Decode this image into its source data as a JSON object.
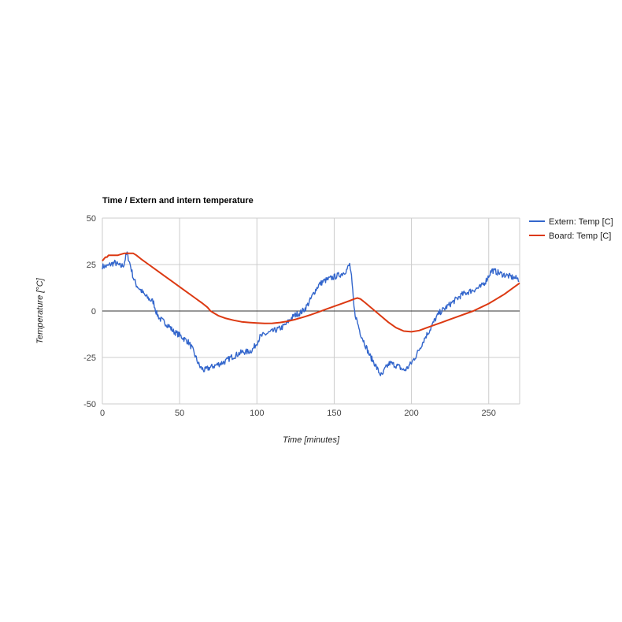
{
  "chart_data": {
    "type": "line",
    "title": "Time / Extern and intern temperature",
    "xlabel": "Time [minutes]",
    "ylabel": "Temperature [°C]",
    "xlim": [
      0,
      270
    ],
    "ylim": [
      -50,
      50
    ],
    "xticks": [
      0,
      50,
      100,
      150,
      200,
      250
    ],
    "yticks": [
      -50,
      -25,
      0,
      25,
      50
    ],
    "grid": true,
    "legend_position": "right",
    "series": [
      {
        "name": "Extern: Temp [C]",
        "color": "#3366cc",
        "noisy": true,
        "x": [
          0,
          3,
          5,
          8,
          10,
          12,
          14,
          15,
          16,
          17,
          18,
          20,
          22,
          25,
          28,
          31,
          33,
          35,
          37,
          40,
          43,
          46,
          50,
          53,
          56,
          58,
          60,
          63,
          66,
          68,
          71,
          74,
          77,
          80,
          83,
          86,
          88,
          91,
          94,
          97,
          100,
          102,
          104,
          107,
          110,
          113,
          116,
          119,
          122,
          125,
          128,
          131,
          134,
          137,
          140,
          143,
          146,
          149,
          152,
          155,
          158,
          160,
          161,
          162,
          163,
          165,
          167,
          170,
          173,
          176,
          179,
          181,
          183,
          186,
          189,
          192,
          195,
          197,
          200,
          203,
          206,
          209,
          212,
          215,
          218,
          221,
          224,
          227,
          230,
          233,
          236,
          239,
          242,
          245,
          248,
          250,
          252,
          255,
          258,
          262,
          266,
          270
        ],
        "values": [
          24,
          24,
          25,
          26,
          25,
          24,
          25,
          29,
          31,
          28,
          25,
          18,
          14,
          11,
          8,
          6,
          5,
          -1,
          -4,
          -6,
          -8,
          -11,
          -13,
          -15,
          -17,
          -20,
          -24,
          -30,
          -32,
          -31,
          -30,
          -29,
          -28,
          -27,
          -25,
          -24,
          -23,
          -22,
          -22,
          -21,
          -17,
          -14,
          -13,
          -12,
          -11,
          -10,
          -9,
          -7,
          -4,
          -2,
          -1,
          1,
          5,
          10,
          14,
          16,
          17,
          18,
          19,
          20,
          22,
          25,
          20,
          10,
          0,
          -6,
          -12,
          -18,
          -24,
          -28,
          -33,
          -35,
          -31,
          -28,
          -29,
          -30,
          -32,
          -31,
          -28,
          -24,
          -19,
          -14,
          -10,
          -5,
          -1,
          1,
          3,
          5,
          7,
          9,
          10,
          11,
          12,
          13,
          16,
          19,
          22,
          21,
          20,
          19,
          18,
          17
        ]
      },
      {
        "name": "Board: Temp [C]",
        "color": "#dc3912",
        "noisy": false,
        "x": [
          0,
          1,
          2,
          3,
          4,
          6,
          8,
          10,
          14,
          18,
          20,
          22,
          25,
          30,
          35,
          40,
          45,
          50,
          55,
          60,
          65,
          68,
          70,
          72,
          75,
          80,
          85,
          90,
          95,
          100,
          105,
          110,
          115,
          120,
          125,
          130,
          135,
          140,
          145,
          150,
          155,
          160,
          163,
          165,
          167,
          170,
          175,
          180,
          185,
          190,
          195,
          200,
          205,
          210,
          215,
          220,
          225,
          230,
          235,
          240,
          245,
          250,
          255,
          260,
          265,
          270
        ],
        "values": [
          27,
          28,
          29,
          29,
          30,
          30,
          30,
          30,
          31,
          31,
          31,
          30,
          28,
          25,
          22,
          19,
          16,
          13,
          10,
          7,
          4,
          2,
          0,
          -1,
          -2.5,
          -4,
          -5,
          -5.8,
          -6.2,
          -6.5,
          -6.7,
          -6.6,
          -6.2,
          -5.5,
          -4.5,
          -3.3,
          -2,
          -0.5,
          1,
          2.5,
          4,
          5.5,
          6.5,
          7,
          6.5,
          4.5,
          1,
          -2.5,
          -6,
          -9,
          -10.8,
          -11.2,
          -10.5,
          -9,
          -7.5,
          -6,
          -4.5,
          -3,
          -1.5,
          0,
          2,
          4,
          6.5,
          9,
          12,
          15
        ]
      }
    ]
  }
}
